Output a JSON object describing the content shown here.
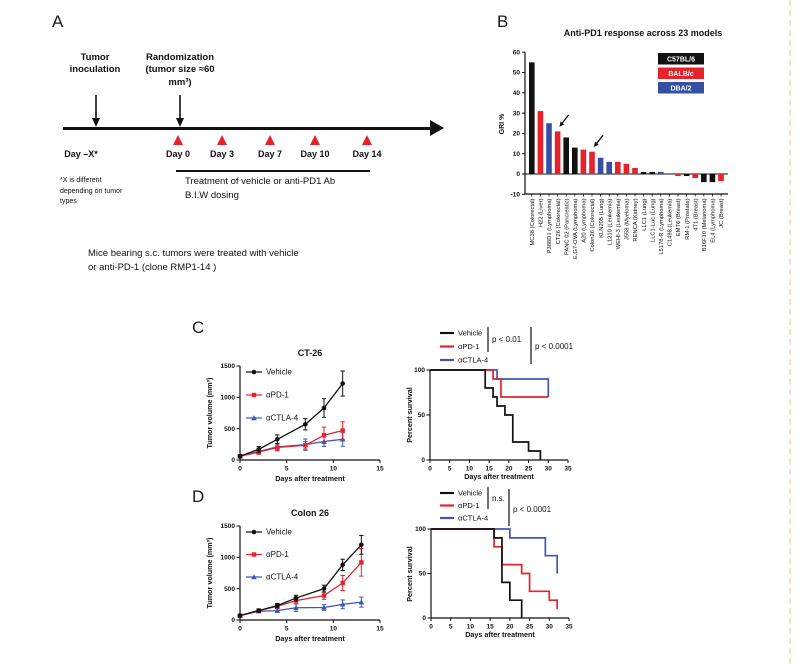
{
  "panels": {
    "a": {
      "label": "A",
      "tumor_inoculation": "Tumor inoculation",
      "randomization": "Randomization (tumor size ≈60 mm³)",
      "day_start": "Day –X*",
      "days": [
        "Day 0",
        "Day 3",
        "Day 7",
        "Day 10",
        "Day 14"
      ],
      "footnote": "*X is different depending on tumor types",
      "treatment_line1": "Treatment of vehicle or anti-PD1 Ab",
      "treatment_line2": "B.I.W dosing",
      "caption_line1": "Mice bearing s.c. tumors were treated with vehicle",
      "caption_line2": "or anti-PD-1 (clone RMP1-14 )"
    },
    "b": {
      "label": "B"
    },
    "c": {
      "label": "C"
    },
    "d": {
      "label": "D"
    }
  },
  "colors": {
    "black": "#111111",
    "red": "#e8222a",
    "blue_bar": "#3550a2",
    "blue_line": "#3e57b5"
  },
  "chart_data": [
    {
      "id": "panel-b-bars",
      "type": "bar",
      "title": "Anti-PD1 response across 23 models",
      "ylabel": "GRI %",
      "ylim": [
        -10,
        60
      ],
      "yticks": [
        60,
        50,
        40,
        30,
        20,
        10,
        0,
        -10
      ],
      "legend": [
        {
          "label": "C57BL/6",
          "color": "#111111"
        },
        {
          "label": "BALB/c",
          "color": "#e8222a"
        },
        {
          "label": "DBA/2",
          "color": "#3550a2"
        }
      ],
      "categories": [
        "MC38 (Colorectal)",
        "H22 (Liver)",
        "P388D1 (Lymphoma)",
        "CT26 (Colorectal)",
        "PANC 02 (Pancreatic)",
        "E.G7-OVA (Lymphoma)",
        "A20 (Lymphoma)",
        "Colon26 (Colorectal)",
        "KLN205 (Lung)",
        "L1210 (Leukemia)",
        "WEHI-3 (Leukemia)",
        "J558 (Myeloma)",
        "RENCA (Kidney)",
        "LLC1 (Lung)",
        "LLC1-Luc (Lung)",
        "L5178-R (Lymphoma)",
        "C1498 (Leukemia)",
        "EMT6 (Breast)",
        "RM-1 (Prostate)",
        "4T1 (Breast)",
        "B16F10 (Melanoma)",
        "EL4 (Lymphoma)",
        "JC (Breast)"
      ],
      "values": [
        55,
        31,
        25,
        21,
        18,
        13,
        12,
        11,
        8,
        6,
        6,
        5,
        3,
        1,
        1,
        1,
        0,
        -1,
        -1,
        -2,
        -4,
        -4,
        -3.5
      ],
      "group_index": [
        0,
        1,
        2,
        1,
        0,
        0,
        1,
        1,
        2,
        2,
        1,
        1,
        1,
        0,
        0,
        2,
        0,
        1,
        0,
        1,
        0,
        0,
        1
      ],
      "arrow_indices": [
        3,
        7
      ]
    },
    {
      "id": "ct26-volume",
      "type": "line",
      "title": "CT-26",
      "xlabel": "Days after treatment",
      "ylabel": "Tumor volume (mm³)",
      "xlim": [
        0,
        15
      ],
      "xticks": [
        0,
        5,
        10,
        15
      ],
      "ylim": [
        0,
        1500
      ],
      "yticks": [
        0,
        500,
        1000,
        1500
      ],
      "x": [
        0,
        2,
        4,
        7,
        9,
        11
      ],
      "series": [
        {
          "name": "Vehicle",
          "color": "#111111",
          "marker": "circle",
          "values": [
            60,
            170,
            330,
            570,
            830,
            1220
          ],
          "errors": [
            25,
            45,
            70,
            90,
            150,
            200
          ]
        },
        {
          "name": "αPD-1",
          "color": "#e8222a",
          "marker": "square",
          "values": [
            60,
            125,
            200,
            235,
            395,
            470
          ],
          "errors": [
            20,
            35,
            55,
            60,
            130,
            140
          ]
        },
        {
          "name": "αCTLA-4",
          "color": "#3e57b5",
          "marker": "triangle",
          "values": [
            60,
            135,
            210,
            245,
            295,
            330
          ],
          "errors": [
            20,
            30,
            55,
            90,
            80,
            110
          ]
        }
      ]
    },
    {
      "id": "ct26-survival",
      "type": "step",
      "xlabel": "Days after treatment",
      "ylabel": "Percent survival",
      "xlim": [
        0,
        35
      ],
      "xticks": [
        0,
        5,
        10,
        15,
        20,
        25,
        30,
        35
      ],
      "ylim": [
        0,
        100
      ],
      "yticks": [
        0,
        50,
        100
      ],
      "annotations": [
        "p < 0.01",
        "p < 0.0001"
      ],
      "series": [
        {
          "name": "Vehicle",
          "color": "#111111",
          "steps": [
            [
              0,
              100
            ],
            [
              14,
              100
            ],
            [
              14,
              80
            ],
            [
              16,
              80
            ],
            [
              16,
              70
            ],
            [
              17,
              70
            ],
            [
              17,
              60
            ],
            [
              19,
              60
            ],
            [
              19,
              50
            ],
            [
              21,
              50
            ],
            [
              21,
              20
            ],
            [
              25,
              20
            ],
            [
              25,
              10
            ],
            [
              28,
              10
            ],
            [
              28,
              0
            ]
          ]
        },
        {
          "name": "αPD-1",
          "color": "#e8222a",
          "steps": [
            [
              0,
              100
            ],
            [
              16,
              100
            ],
            [
              16,
              90
            ],
            [
              18,
              90
            ],
            [
              18,
              70
            ],
            [
              30,
              70
            ]
          ]
        },
        {
          "name": "αCTLA-4",
          "color": "#3e57b5",
          "steps": [
            [
              0,
              100
            ],
            [
              17,
              100
            ],
            [
              17,
              90
            ],
            [
              30,
              90
            ],
            [
              30,
              70
            ]
          ]
        }
      ]
    },
    {
      "id": "colon26-volume",
      "type": "line",
      "title": "Colon 26",
      "xlabel": "Days after treatment",
      "ylabel": "Tumor volume (mm³)",
      "xlim": [
        0,
        15
      ],
      "xticks": [
        0,
        5,
        10,
        15
      ],
      "ylim": [
        0,
        1500
      ],
      "yticks": [
        0,
        500,
        1000,
        1500
      ],
      "x": [
        0,
        2,
        4,
        6,
        9,
        11,
        13
      ],
      "series": [
        {
          "name": "Vehicle",
          "color": "#111111",
          "marker": "circle",
          "values": [
            70,
            150,
            230,
            350,
            500,
            880,
            1200
          ],
          "errors": [
            15,
            25,
            35,
            45,
            55,
            90,
            150
          ]
        },
        {
          "name": "αPD-1",
          "color": "#e8222a",
          "marker": "square",
          "values": [
            70,
            150,
            220,
            310,
            390,
            590,
            920
          ],
          "errors": [
            15,
            25,
            35,
            50,
            60,
            120,
            220
          ]
        },
        {
          "name": "αCTLA-4",
          "color": "#3e57b5",
          "marker": "triangle",
          "values": [
            70,
            140,
            150,
            195,
            200,
            250,
            285
          ],
          "errors": [
            12,
            20,
            30,
            60,
            45,
            70,
            80
          ]
        }
      ]
    },
    {
      "id": "colon26-survival",
      "type": "step",
      "xlabel": "Days after treatment",
      "ylabel": "Percent survival",
      "xlim": [
        0,
        35
      ],
      "xticks": [
        0,
        5,
        10,
        15,
        20,
        25,
        30,
        35
      ],
      "ylim": [
        0,
        100
      ],
      "yticks": [
        0,
        50,
        100
      ],
      "annotations": [
        "n.s.",
        "p < 0.0001"
      ],
      "series": [
        {
          "name": "Vehicle",
          "color": "#111111",
          "steps": [
            [
              0,
              100
            ],
            [
              16,
              100
            ],
            [
              16,
              90
            ],
            [
              18,
              90
            ],
            [
              18,
              40
            ],
            [
              20,
              40
            ],
            [
              20,
              20
            ],
            [
              23,
              20
            ],
            [
              23,
              0
            ]
          ]
        },
        {
          "name": "αPD-1",
          "color": "#e8222a",
          "steps": [
            [
              0,
              100
            ],
            [
              16,
              100
            ],
            [
              16,
              80
            ],
            [
              18,
              80
            ],
            [
              18,
              60
            ],
            [
              23,
              60
            ],
            [
              23,
              50
            ],
            [
              25,
              50
            ],
            [
              25,
              30
            ],
            [
              30,
              30
            ],
            [
              30,
              20
            ],
            [
              32,
              20
            ],
            [
              32,
              10
            ]
          ]
        },
        {
          "name": "αCTLA-4",
          "color": "#3e57b5",
          "steps": [
            [
              0,
              100
            ],
            [
              20,
              100
            ],
            [
              20,
              90
            ],
            [
              29,
              90
            ],
            [
              29,
              70
            ],
            [
              32,
              70
            ],
            [
              32,
              50
            ]
          ]
        }
      ]
    }
  ]
}
